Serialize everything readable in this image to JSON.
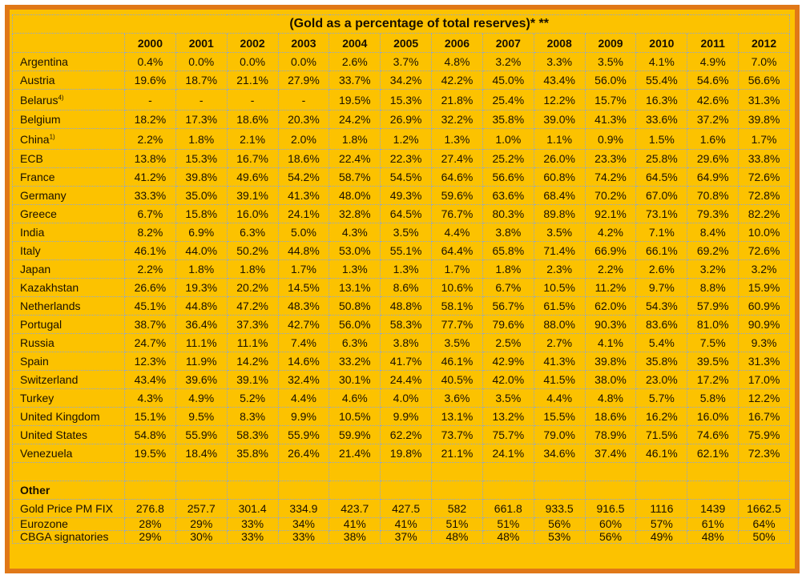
{
  "title": "(Gold as a percentage of total reserves)* **",
  "years": [
    "2000",
    "2001",
    "2002",
    "2003",
    "2004",
    "2005",
    "2006",
    "2007",
    "2008",
    "2009",
    "2010",
    "2011",
    "2012"
  ],
  "rows": [
    {
      "label": "Argentina",
      "values": [
        "0.4%",
        "0.0%",
        "0.0%",
        "0.0%",
        "2.6%",
        "3.7%",
        "4.8%",
        "3.2%",
        "3.3%",
        "3.5%",
        "4.1%",
        "4.9%",
        "7.0%"
      ]
    },
    {
      "label": "Austria",
      "values": [
        "19.6%",
        "18.7%",
        "21.1%",
        "27.9%",
        "33.7%",
        "34.2%",
        "42.2%",
        "45.0%",
        "43.4%",
        "56.0%",
        "55.4%",
        "54.6%",
        "56.6%"
      ]
    },
    {
      "label": "Belarus",
      "note": "4)",
      "values": [
        "-",
        "-",
        "-",
        "-",
        "19.5%",
        "15.3%",
        "21.8%",
        "25.4%",
        "12.2%",
        "15.7%",
        "16.3%",
        "42.6%",
        "31.3%"
      ]
    },
    {
      "label": "Belgium",
      "values": [
        "18.2%",
        "17.3%",
        "18.6%",
        "20.3%",
        "24.2%",
        "26.9%",
        "32.2%",
        "35.8%",
        "39.0%",
        "41.3%",
        "33.6%",
        "37.2%",
        "39.8%"
      ]
    },
    {
      "label": "China",
      "note": "1)",
      "values": [
        "2.2%",
        "1.8%",
        "2.1%",
        "2.0%",
        "1.8%",
        "1.2%",
        "1.3%",
        "1.0%",
        "1.1%",
        "0.9%",
        "1.5%",
        "1.6%",
        "1.7%"
      ]
    },
    {
      "label": "ECB",
      "values": [
        "13.8%",
        "15.3%",
        "16.7%",
        "18.6%",
        "22.4%",
        "22.3%",
        "27.4%",
        "25.2%",
        "26.0%",
        "23.3%",
        "25.8%",
        "29.6%",
        "33.8%"
      ]
    },
    {
      "label": "France",
      "values": [
        "41.2%",
        "39.8%",
        "49.6%",
        "54.2%",
        "58.7%",
        "54.5%",
        "64.6%",
        "56.6%",
        "60.8%",
        "74.2%",
        "64.5%",
        "64.9%",
        "72.6%"
      ]
    },
    {
      "label": "Germany",
      "values": [
        "33.3%",
        "35.0%",
        "39.1%",
        "41.3%",
        "48.0%",
        "49.3%",
        "59.6%",
        "63.6%",
        "68.4%",
        "70.2%",
        "67.0%",
        "70.8%",
        "72.8%"
      ]
    },
    {
      "label": "Greece",
      "values": [
        "6.7%",
        "15.8%",
        "16.0%",
        "24.1%",
        "32.8%",
        "64.5%",
        "76.7%",
        "80.3%",
        "89.8%",
        "92.1%",
        "73.1%",
        "79.3%",
        "82.2%"
      ]
    },
    {
      "label": "India",
      "values": [
        "8.2%",
        "6.9%",
        "6.3%",
        "5.0%",
        "4.3%",
        "3.5%",
        "4.4%",
        "3.8%",
        "3.5%",
        "4.2%",
        "7.1%",
        "8.4%",
        "10.0%"
      ]
    },
    {
      "label": "Italy",
      "values": [
        "46.1%",
        "44.0%",
        "50.2%",
        "44.8%",
        "53.0%",
        "55.1%",
        "64.4%",
        "65.8%",
        "71.4%",
        "66.9%",
        "66.1%",
        "69.2%",
        "72.6%"
      ]
    },
    {
      "label": "Japan",
      "values": [
        "2.2%",
        "1.8%",
        "1.8%",
        "1.7%",
        "1.3%",
        "1.3%",
        "1.7%",
        "1.8%",
        "2.3%",
        "2.2%",
        "2.6%",
        "3.2%",
        "3.2%"
      ]
    },
    {
      "label": "Kazakhstan",
      "values": [
        "26.6%",
        "19.3%",
        "20.2%",
        "14.5%",
        "13.1%",
        "8.6%",
        "10.6%",
        "6.7%",
        "10.5%",
        "11.2%",
        "9.7%",
        "8.8%",
        "15.9%"
      ]
    },
    {
      "label": "Netherlands",
      "values": [
        "45.1%",
        "44.8%",
        "47.2%",
        "48.3%",
        "50.8%",
        "48.8%",
        "58.1%",
        "56.7%",
        "61.5%",
        "62.0%",
        "54.3%",
        "57.9%",
        "60.9%"
      ]
    },
    {
      "label": "Portugal",
      "values": [
        "38.7%",
        "36.4%",
        "37.3%",
        "42.7%",
        "56.0%",
        "58.3%",
        "77.7%",
        "79.6%",
        "88.0%",
        "90.3%",
        "83.6%",
        "81.0%",
        "90.9%"
      ]
    },
    {
      "label": "Russia",
      "values": [
        "24.7%",
        "11.1%",
        "11.1%",
        "7.4%",
        "6.3%",
        "3.8%",
        "3.5%",
        "2.5%",
        "2.7%",
        "4.1%",
        "5.4%",
        "7.5%",
        "9.3%"
      ]
    },
    {
      "label": "Spain",
      "values": [
        "12.3%",
        "11.9%",
        "14.2%",
        "14.6%",
        "33.2%",
        "41.7%",
        "46.1%",
        "42.9%",
        "41.3%",
        "39.8%",
        "35.8%",
        "39.5%",
        "31.3%"
      ]
    },
    {
      "label": "Switzerland",
      "values": [
        "43.4%",
        "39.6%",
        "39.1%",
        "32.4%",
        "30.1%",
        "24.4%",
        "40.5%",
        "42.0%",
        "41.5%",
        "38.0%",
        "23.0%",
        "17.2%",
        "17.0%"
      ]
    },
    {
      "label": "Turkey",
      "values": [
        "4.3%",
        "4.9%",
        "5.2%",
        "4.4%",
        "4.6%",
        "4.0%",
        "3.6%",
        "3.5%",
        "4.4%",
        "4.8%",
        "5.7%",
        "5.8%",
        "12.2%"
      ]
    },
    {
      "label": "United Kingdom",
      "values": [
        "15.1%",
        "9.5%",
        "8.3%",
        "9.9%",
        "10.5%",
        "9.9%",
        "13.1%",
        "13.2%",
        "15.5%",
        "18.6%",
        "16.2%",
        "16.0%",
        "16.7%"
      ]
    },
    {
      "label": "United States",
      "values": [
        "54.8%",
        "55.9%",
        "58.3%",
        "55.9%",
        "59.9%",
        "62.2%",
        "73.7%",
        "75.7%",
        "79.0%",
        "78.9%",
        "71.5%",
        "74.6%",
        "75.9%"
      ]
    },
    {
      "label": "Venezuela",
      "values": [
        "19.5%",
        "18.4%",
        "35.8%",
        "26.4%",
        "21.4%",
        "19.8%",
        "21.1%",
        "24.1%",
        "34.6%",
        "37.4%",
        "46.1%",
        "62.1%",
        "72.3%"
      ]
    }
  ],
  "other": {
    "label": "Other",
    "rows": [
      {
        "label": "Gold Price PM FIX",
        "values": [
          "276.8",
          "257.7",
          "301.4",
          "334.9",
          "423.7",
          "427.5",
          "582",
          "661.8",
          "933.5",
          "916.5",
          "1116",
          "1439",
          "1662.5"
        ]
      },
      {
        "label": "Eurozone",
        "values": [
          "28%",
          "29%",
          "33%",
          "34%",
          "41%",
          "41%",
          "51%",
          "51%",
          "56%",
          "60%",
          "57%",
          "61%",
          "64%"
        ]
      },
      {
        "label": "CBGA signatories",
        "values": [
          "29%",
          "30%",
          "33%",
          "33%",
          "38%",
          "37%",
          "48%",
          "48%",
          "53%",
          "56%",
          "49%",
          "48%",
          "50%"
        ]
      }
    ]
  }
}
